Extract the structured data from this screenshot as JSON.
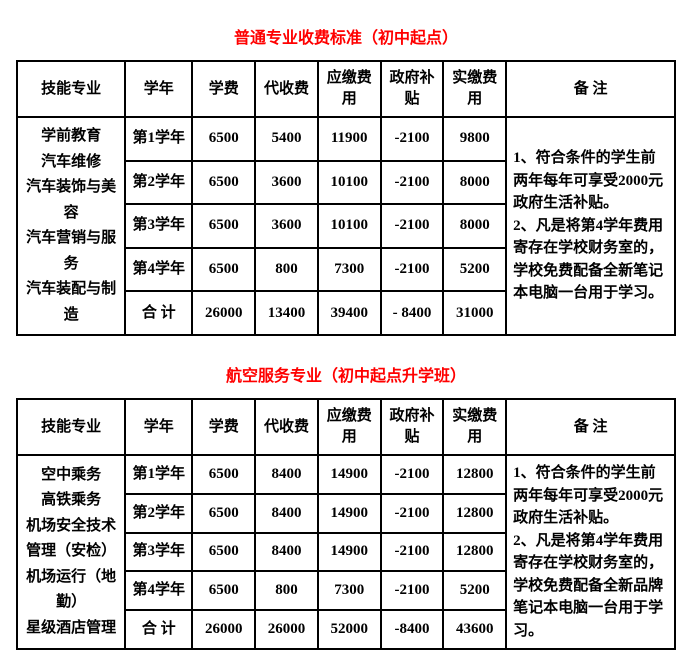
{
  "colors": {
    "title_color": "#ff0000",
    "text_color": "#000000",
    "border_color": "#000000",
    "background": "#ffffff"
  },
  "headers": {
    "major": "技能专业",
    "year": "学年",
    "tuition": "学费",
    "proxy": "代收费",
    "due": "应缴费用",
    "subsidy": "政府补贴",
    "actual": "实缴费用",
    "remark": "备 注"
  },
  "table1": {
    "title": "普通专业收费标准（初中起点）",
    "major": "学前教育\n汽车维修\n汽车装饰与美容\n汽车营销与服务\n汽车装配与制造",
    "rows": [
      {
        "year": "第1学年",
        "tuition": "6500",
        "proxy": "5400",
        "due": "11900",
        "subsidy": "-2100",
        "actual": "9800"
      },
      {
        "year": "第2学年",
        "tuition": "6500",
        "proxy": "3600",
        "due": "10100",
        "subsidy": "-2100",
        "actual": "8000"
      },
      {
        "year": "第3学年",
        "tuition": "6500",
        "proxy": "3600",
        "due": "10100",
        "subsidy": "-2100",
        "actual": "8000"
      },
      {
        "year": "第4学年",
        "tuition": "6500",
        "proxy": "800",
        "due": "7300",
        "subsidy": "-2100",
        "actual": "5200"
      },
      {
        "year": "合 计",
        "tuition": "26000",
        "proxy": "13400",
        "due": "39400",
        "subsidy": "- 8400",
        "actual": "31000"
      }
    ],
    "remark": "1、符合条件的学生前两年每年可享受2000元政府生活补贴。\n2、凡是将第4学年费用寄存在学校财务室的，学校免费配备全新笔记本电脑一台用于学习。"
  },
  "table2": {
    "title": "航空服务专业（初中起点升学班）",
    "major": "空中乘务\n高铁乘务\n机场安全技术管理（安检）\n机场运行（地勤）\n星级酒店管理",
    "rows": [
      {
        "year": "第1学年",
        "tuition": "6500",
        "proxy": "8400",
        "due": "14900",
        "subsidy": "-2100",
        "actual": "12800"
      },
      {
        "year": "第2学年",
        "tuition": "6500",
        "proxy": "8400",
        "due": "14900",
        "subsidy": "-2100",
        "actual": "12800"
      },
      {
        "year": "第3学年",
        "tuition": "6500",
        "proxy": "8400",
        "due": "14900",
        "subsidy": "-2100",
        "actual": "12800"
      },
      {
        "year": "第4学年",
        "tuition": "6500",
        "proxy": "800",
        "due": "7300",
        "subsidy": "-2100",
        "actual": "5200"
      },
      {
        "year": "合 计",
        "tuition": "26000",
        "proxy": "26000",
        "due": "52000",
        "subsidy": "-8400",
        "actual": "43600"
      }
    ],
    "remark": "1、符合条件的学生前两年每年可享受2000元政府生活补贴。\n2、凡是将第4学年费用寄存在学校财务室的，学校免费配备全新品牌笔记本电脑一台用于学习。"
  }
}
